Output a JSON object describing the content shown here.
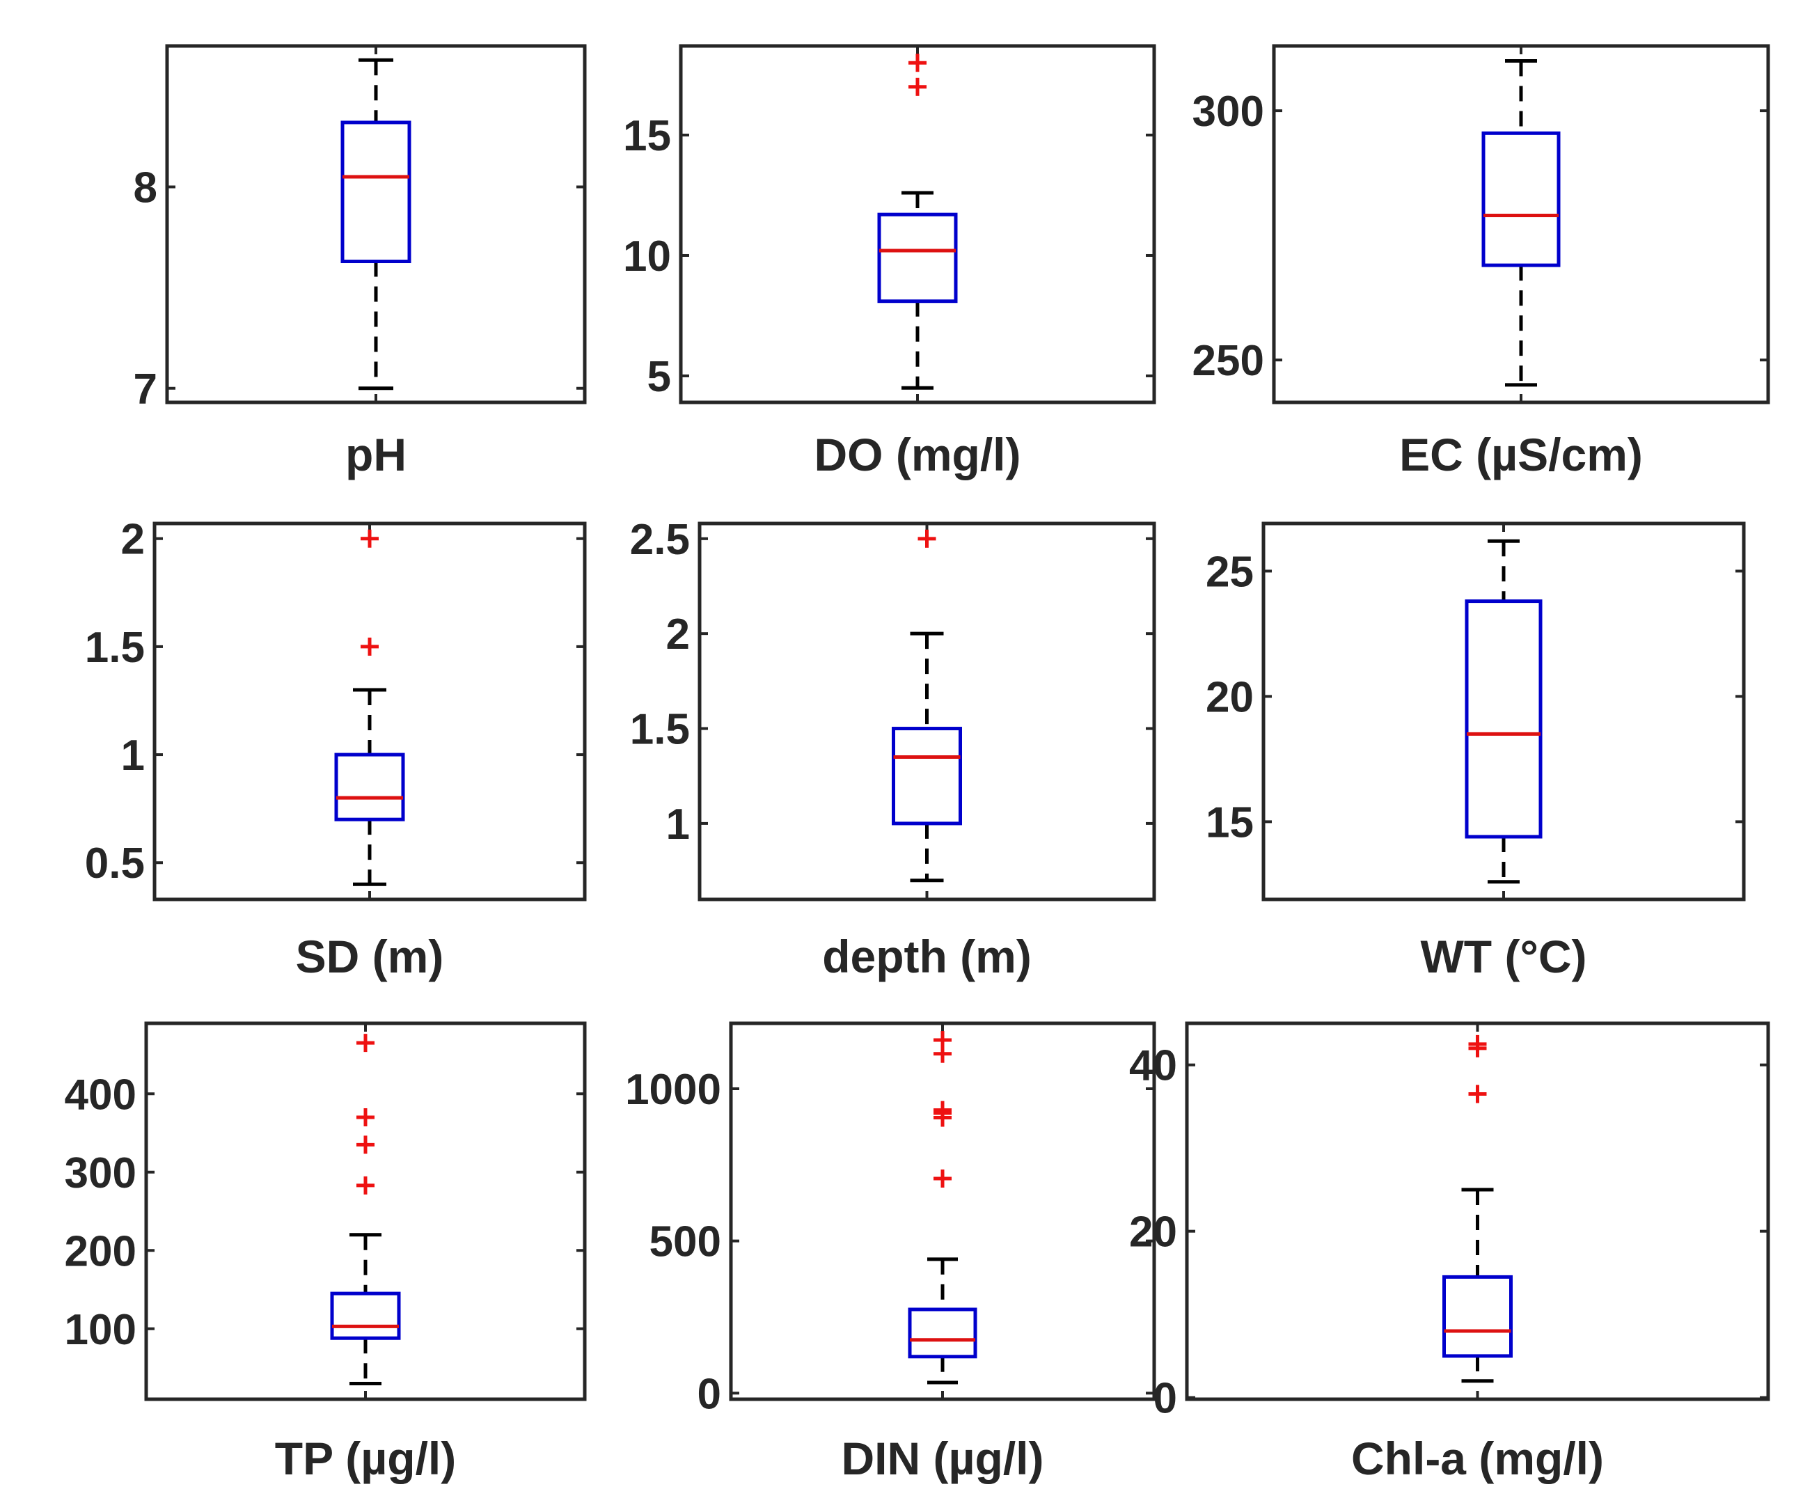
{
  "chart_data": [
    {
      "type": "boxplot",
      "xlabel": "pH",
      "ylim": [
        6.93,
        8.7
      ],
      "yticks": [
        7,
        8
      ],
      "ytick_labels": [
        "7",
        "8"
      ],
      "tick_side": "left",
      "box": {
        "whisker_low": 7.0,
        "q1": 7.63,
        "median": 8.05,
        "q3": 8.32,
        "whisker_high": 8.63
      },
      "outliers": []
    },
    {
      "type": "boxplot",
      "xlabel": "DO (mg/l)",
      "ylim": [
        3.9,
        18.7
      ],
      "yticks": [
        5,
        10,
        15
      ],
      "ytick_labels": [
        "5",
        "10",
        "15"
      ],
      "tick_side": "left",
      "box": {
        "whisker_low": 4.5,
        "q1": 8.1,
        "median": 10.2,
        "q3": 11.7,
        "whisker_high": 12.6
      },
      "outliers": [
        17.0,
        18.0
      ]
    },
    {
      "type": "boxplot",
      "xlabel": "EC (µS/cm)",
      "ylim": [
        241.5,
        313.0
      ],
      "yticks": [
        250,
        300
      ],
      "ytick_labels": [
        "250",
        "300"
      ],
      "tick_side": "left",
      "box": {
        "whisker_low": 245,
        "q1": 269,
        "median": 279,
        "q3": 295.5,
        "whisker_high": 310
      },
      "outliers": []
    },
    {
      "type": "boxplot",
      "xlabel": "SD (m)",
      "ylim": [
        0.33,
        2.07
      ],
      "yticks": [
        0.5,
        1,
        1.5,
        2
      ],
      "ytick_labels": [
        "0.5",
        "1",
        "1.5",
        "2"
      ],
      "tick_side": "left",
      "box": {
        "whisker_low": 0.4,
        "q1": 0.7,
        "median": 0.8,
        "q3": 1.0,
        "whisker_high": 1.3
      },
      "outliers": [
        1.5,
        2.0
      ]
    },
    {
      "type": "boxplot",
      "xlabel": "depth (m)",
      "ylim": [
        0.6,
        2.58
      ],
      "yticks": [
        1,
        1.5,
        2,
        2.5
      ],
      "ytick_labels": [
        "1",
        "1.5",
        "2",
        "2.5"
      ],
      "tick_side": "left",
      "box": {
        "whisker_low": 0.7,
        "q1": 1.0,
        "median": 1.35,
        "q3": 1.5,
        "whisker_high": 2.0
      },
      "outliers": [
        2.5
      ]
    },
    {
      "type": "boxplot",
      "xlabel": "WT (°C)",
      "ylim": [
        11.9,
        26.9
      ],
      "yticks": [
        15,
        20,
        25
      ],
      "ytick_labels": [
        "15",
        "20",
        "25"
      ],
      "tick_side": "left",
      "box": {
        "whisker_low": 12.6,
        "q1": 14.4,
        "median": 18.5,
        "q3": 23.8,
        "whisker_high": 26.2
      },
      "outliers": []
    },
    {
      "type": "boxplot",
      "xlabel": "TP (µg/l)",
      "ylim": [
        10,
        490
      ],
      "yticks": [
        100,
        200,
        300,
        400
      ],
      "ytick_labels": [
        "100",
        "200",
        "300",
        "400"
      ],
      "tick_side": "left",
      "box": {
        "whisker_low": 30,
        "q1": 88,
        "median": 103,
        "q3": 145,
        "whisker_high": 220
      },
      "outliers": [
        283,
        335,
        370,
        465
      ]
    },
    {
      "type": "boxplot",
      "xlabel": "DIN (µg/l)",
      "ylim": [
        -20,
        1215
      ],
      "yticks": [
        0,
        500,
        1000
      ],
      "ytick_labels": [
        "0",
        "500",
        "1000"
      ],
      "tick_side": "left",
      "box": {
        "whisker_low": 35,
        "q1": 120,
        "median": 175,
        "q3": 275,
        "whisker_high": 440
      },
      "outliers": [
        705,
        905,
        920,
        930,
        1115,
        1160
      ]
    },
    {
      "type": "boxplot",
      "xlabel": "Chl-a (mg/l)",
      "ylim": [
        -0.2,
        45
      ],
      "yticks": [
        0,
        20,
        40
      ],
      "ytick_labels": [
        "0",
        "20",
        "40"
      ],
      "tick_side": "left",
      "box": {
        "whisker_low": 2.0,
        "q1": 5.0,
        "median": 8.0,
        "q3": 14.5,
        "whisker_high": 25.0
      },
      "outliers": [
        36.5,
        42.0,
        42.5
      ]
    }
  ],
  "colors": {
    "axes": "#262626",
    "box": "#0000cc",
    "median": "#dd1111",
    "outlier": "#ee1111",
    "whisker": "#000000"
  }
}
